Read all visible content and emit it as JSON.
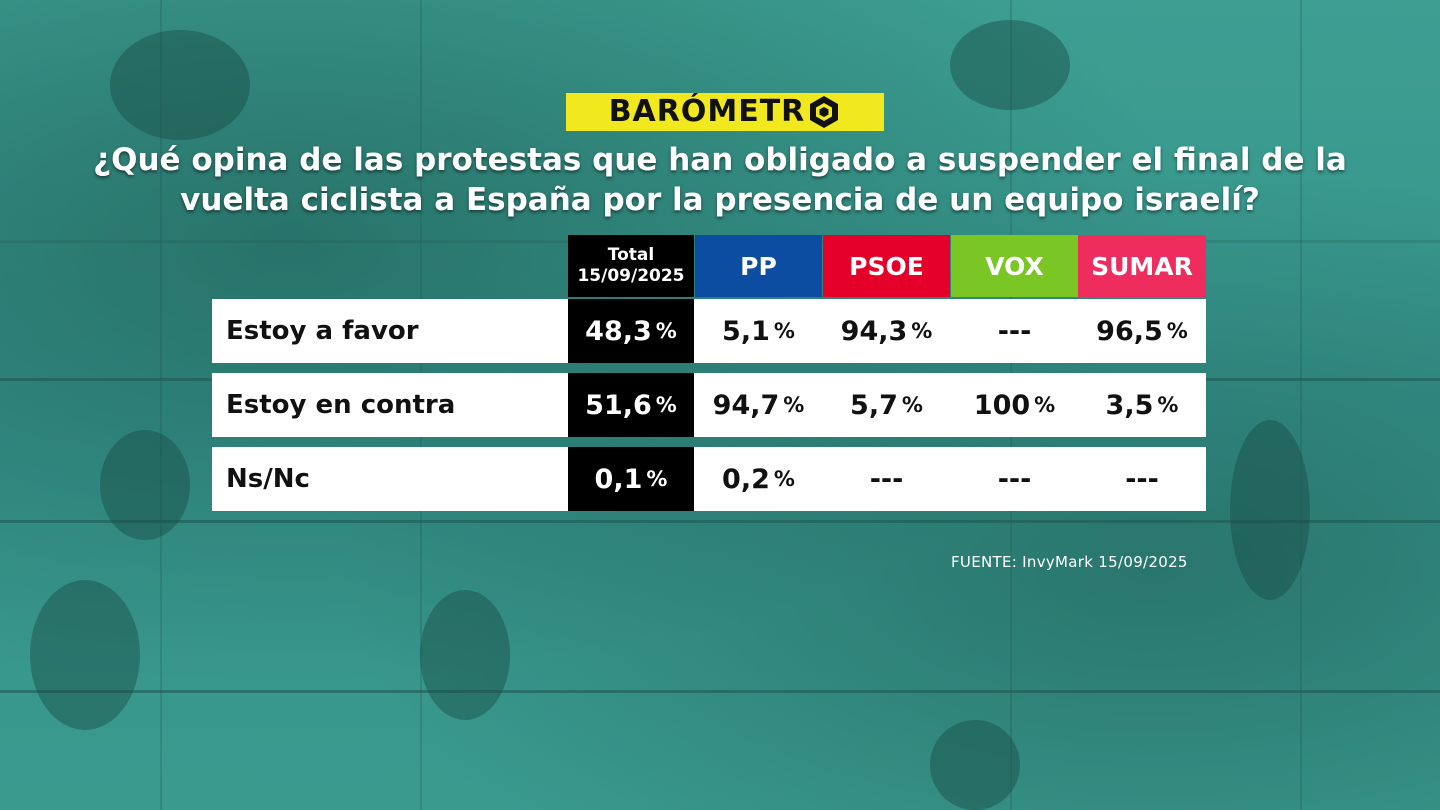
{
  "brand": {
    "logo_text": "BARÓMETR"
  },
  "chart_data": {
    "type": "table",
    "title": "¿Qué opina de las protestas que han obligado a suspender el final de la vuelta ciclista a España por la presencia de un equipo israelí?",
    "columns": [
      {
        "name": "Total",
        "sub": "15/09/2025",
        "color": "#000000"
      },
      {
        "name": "PP",
        "color": "#0c4da2"
      },
      {
        "name": "PSOE",
        "color": "#e5002a"
      },
      {
        "name": "VOX",
        "color": "#79c624"
      },
      {
        "name": "SUMAR",
        "color": "#ee2c5d"
      }
    ],
    "rows": [
      {
        "label": "Estoy a favor",
        "values": [
          "48,3",
          "5,1",
          "94,3",
          "---",
          "96,5"
        ]
      },
      {
        "label": "Estoy en contra",
        "values": [
          "51,6",
          "94,7",
          "5,7",
          "100",
          "3,5"
        ]
      },
      {
        "label": "Ns/Nc",
        "values": [
          "0,1",
          "0,2",
          "---",
          "---",
          "---"
        ]
      }
    ],
    "unit": "%"
  },
  "source": "FUENTE: InvyMark 15/09/2025"
}
